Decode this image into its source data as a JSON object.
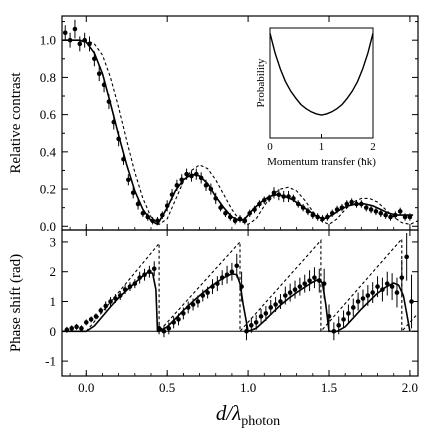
{
  "chart_data": [
    {
      "type": "line",
      "panel": "top",
      "ylabel": "Relative contrast",
      "xlim": [
        -0.15,
        2.05
      ],
      "ylim": [
        -0.02,
        1.13
      ],
      "yticks": [
        "0.0",
        "0.2",
        "0.4",
        "0.6",
        "0.8",
        "1.0"
      ],
      "xticks": [],
      "series": [
        {
          "kind": "fit-solid",
          "x": [
            -0.15,
            -0.1,
            -0.05,
            0.0,
            0.05,
            0.1,
            0.15,
            0.2,
            0.25,
            0.3,
            0.35,
            0.4,
            0.44,
            0.5,
            0.55,
            0.6,
            0.65,
            0.7,
            0.75,
            0.8,
            0.85,
            0.9,
            0.95,
            0.98,
            1.03,
            1.08,
            1.13,
            1.18,
            1.23,
            1.28,
            1.33,
            1.38,
            1.43,
            1.47,
            1.52,
            1.57,
            1.62,
            1.67,
            1.72,
            1.77,
            1.82,
            1.87,
            1.92,
            1.97,
            2.02
          ],
          "y": [
            1.0,
            1.0,
            1.0,
            0.99,
            0.93,
            0.82,
            0.66,
            0.49,
            0.33,
            0.19,
            0.09,
            0.03,
            0.01,
            0.1,
            0.19,
            0.25,
            0.28,
            0.27,
            0.23,
            0.16,
            0.1,
            0.05,
            0.03,
            0.04,
            0.09,
            0.13,
            0.16,
            0.17,
            0.16,
            0.14,
            0.11,
            0.08,
            0.05,
            0.04,
            0.06,
            0.09,
            0.11,
            0.12,
            0.12,
            0.11,
            0.09,
            0.07,
            0.06,
            0.06,
            0.06
          ]
        },
        {
          "kind": "theory-dashed",
          "x": [
            -0.15,
            -0.1,
            -0.05,
            0.0,
            0.05,
            0.1,
            0.15,
            0.2,
            0.25,
            0.3,
            0.35,
            0.4,
            0.45,
            0.5,
            0.55,
            0.6,
            0.65,
            0.7,
            0.75,
            0.8,
            0.85,
            0.9,
            0.95,
            1.0,
            1.05,
            1.1,
            1.15,
            1.2,
            1.25,
            1.3,
            1.35,
            1.4,
            1.45,
            1.5,
            1.55,
            1.6,
            1.65,
            1.7,
            1.75,
            1.8,
            1.85,
            1.9,
            1.95,
            2.0,
            2.05
          ],
          "y": [
            1.0,
            1.0,
            1.0,
            1.0,
            0.98,
            0.92,
            0.8,
            0.64,
            0.46,
            0.29,
            0.15,
            0.05,
            0.01,
            0.04,
            0.14,
            0.24,
            0.3,
            0.33,
            0.31,
            0.25,
            0.17,
            0.09,
            0.03,
            0.01,
            0.04,
            0.11,
            0.17,
            0.2,
            0.21,
            0.19,
            0.14,
            0.08,
            0.03,
            0.01,
            0.04,
            0.09,
            0.13,
            0.15,
            0.15,
            0.13,
            0.09,
            0.05,
            0.02,
            0.01,
            0.03
          ]
        },
        {
          "kind": "data-points",
          "x": [
            -0.13,
            -0.1,
            -0.07,
            -0.04,
            -0.01,
            0.02,
            0.05,
            0.08,
            0.11,
            0.14,
            0.17,
            0.2,
            0.23,
            0.26,
            0.29,
            0.32,
            0.35,
            0.38,
            0.41,
            0.44,
            0.47,
            0.5,
            0.53,
            0.56,
            0.59,
            0.62,
            0.65,
            0.68,
            0.71,
            0.74,
            0.77,
            0.8,
            0.83,
            0.86,
            0.89,
            0.92,
            0.95,
            0.98,
            1.01,
            1.04,
            1.07,
            1.1,
            1.13,
            1.16,
            1.19,
            1.22,
            1.25,
            1.28,
            1.31,
            1.34,
            1.37,
            1.4,
            1.43,
            1.46,
            1.49,
            1.52,
            1.55,
            1.58,
            1.61,
            1.64,
            1.67,
            1.7,
            1.73,
            1.76,
            1.79,
            1.82,
            1.85,
            1.88,
            1.91,
            1.94,
            1.97,
            2.0
          ],
          "y": [
            1.04,
            1.0,
            1.06,
            0.98,
            1.0,
            0.98,
            0.9,
            0.82,
            0.76,
            0.67,
            0.56,
            0.47,
            0.36,
            0.25,
            0.18,
            0.12,
            0.07,
            0.05,
            0.03,
            0.03,
            0.06,
            0.11,
            0.17,
            0.22,
            0.25,
            0.28,
            0.27,
            0.28,
            0.26,
            0.22,
            0.2,
            0.15,
            0.1,
            0.07,
            0.05,
            0.03,
            0.04,
            0.03,
            0.07,
            0.09,
            0.12,
            0.14,
            0.15,
            0.18,
            0.17,
            0.16,
            0.16,
            0.15,
            0.12,
            0.1,
            0.08,
            0.06,
            0.05,
            0.04,
            0.05,
            0.07,
            0.09,
            0.1,
            0.12,
            0.13,
            0.12,
            0.12,
            0.1,
            0.09,
            0.08,
            0.07,
            0.06,
            0.05,
            0.06,
            0.08,
            0.05,
            0.05
          ],
          "err": [
            0.04,
            0.04,
            0.05,
            0.04,
            0.04,
            0.04,
            0.04,
            0.04,
            0.04,
            0.04,
            0.04,
            0.04,
            0.03,
            0.03,
            0.03,
            0.03,
            0.02,
            0.02,
            0.02,
            0.02,
            0.02,
            0.03,
            0.03,
            0.03,
            0.03,
            0.03,
            0.03,
            0.03,
            0.03,
            0.03,
            0.03,
            0.03,
            0.02,
            0.02,
            0.02,
            0.02,
            0.02,
            0.02,
            0.02,
            0.02,
            0.02,
            0.02,
            0.02,
            0.03,
            0.03,
            0.03,
            0.03,
            0.02,
            0.02,
            0.02,
            0.02,
            0.02,
            0.02,
            0.02,
            0.02,
            0.02,
            0.02,
            0.02,
            0.02,
            0.02,
            0.02,
            0.02,
            0.02,
            0.02,
            0.02,
            0.02,
            0.02,
            0.02,
            0.02,
            0.02,
            0.02,
            0.02
          ]
        }
      ]
    },
    {
      "type": "line",
      "panel": "bottom",
      "ylabel": "Phase shift (rad)",
      "xlabel_main": "d/λ",
      "xlabel_sub": "photon",
      "xlim": [
        -0.15,
        2.05
      ],
      "ylim": [
        -1.5,
        3.4
      ],
      "yticks": [
        "-1",
        "0",
        "1",
        "2",
        "3"
      ],
      "xticks": [
        "0.0",
        "0.5",
        "1.0",
        "1.5",
        "2.0"
      ],
      "series": [
        {
          "kind": "fit-solid",
          "x": [
            -0.15,
            0.0,
            0.05,
            0.1,
            0.15,
            0.2,
            0.25,
            0.3,
            0.35,
            0.38,
            0.41,
            0.43,
            0.44,
            0.45,
            0.5,
            0.55,
            0.6,
            0.65,
            0.7,
            0.75,
            0.8,
            0.85,
            0.9,
            0.93,
            0.95,
            0.97,
            1.0,
            1.05,
            1.1,
            1.15,
            1.2,
            1.25,
            1.3,
            1.35,
            1.4,
            1.44,
            1.46,
            1.48,
            1.5,
            1.55,
            1.6,
            1.65,
            1.7,
            1.75,
            1.8,
            1.85,
            1.9,
            1.93,
            1.96,
            1.98,
            2.0
          ],
          "y": [
            0.0,
            0.0,
            0.18,
            0.5,
            0.82,
            1.12,
            1.38,
            1.62,
            1.86,
            1.98,
            1.95,
            1.4,
            0.0,
            0.0,
            0.15,
            0.42,
            0.7,
            0.96,
            1.2,
            1.42,
            1.62,
            1.8,
            1.93,
            1.9,
            1.6,
            0.9,
            0.0,
            0.1,
            0.35,
            0.62,
            0.88,
            1.1,
            1.3,
            1.48,
            1.65,
            1.76,
            1.6,
            0.9,
            0.0,
            0.0,
            0.15,
            0.45,
            0.75,
            1.02,
            1.28,
            1.48,
            1.62,
            1.55,
            1.2,
            0.6,
            0.0
          ]
        },
        {
          "kind": "theory-dashed",
          "x": [
            0.0,
            0.45,
            0.45,
            0.95,
            0.95,
            1.45,
            1.45,
            1.95,
            1.95,
            2.05
          ],
          "y": [
            0.0,
            2.95,
            0.0,
            3.0,
            0.0,
            3.05,
            0.0,
            3.1,
            0.0,
            0.6
          ]
        },
        {
          "kind": "data-points",
          "x": [
            -0.12,
            -0.09,
            -0.06,
            -0.03,
            0.0,
            0.03,
            0.06,
            0.09,
            0.12,
            0.15,
            0.18,
            0.21,
            0.24,
            0.27,
            0.3,
            0.33,
            0.36,
            0.39,
            0.42,
            0.45,
            0.48,
            0.51,
            0.54,
            0.57,
            0.6,
            0.63,
            0.66,
            0.69,
            0.72,
            0.75,
            0.78,
            0.81,
            0.84,
            0.87,
            0.9,
            0.93,
            0.96,
            0.99,
            1.02,
            1.05,
            1.08,
            1.11,
            1.14,
            1.17,
            1.2,
            1.23,
            1.26,
            1.29,
            1.32,
            1.35,
            1.38,
            1.41,
            1.44,
            1.47,
            1.5,
            1.53,
            1.56,
            1.59,
            1.62,
            1.65,
            1.68,
            1.71,
            1.74,
            1.77,
            1.8,
            1.83,
            1.86,
            1.89,
            1.92,
            1.95,
            1.98,
            2.01
          ],
          "y": [
            0.05,
            0.1,
            0.15,
            0.1,
            0.3,
            0.4,
            0.5,
            0.7,
            0.85,
            1.0,
            1.1,
            1.2,
            1.4,
            1.5,
            1.6,
            1.8,
            1.9,
            2.0,
            2.1,
            0.1,
            0.0,
            0.1,
            0.3,
            0.4,
            0.6,
            0.8,
            0.9,
            1.0,
            1.2,
            1.3,
            1.5,
            1.6,
            1.8,
            1.9,
            2.0,
            2.2,
            1.5,
            0.0,
            0.2,
            0.3,
            0.5,
            0.6,
            0.8,
            0.9,
            1.0,
            1.2,
            1.3,
            1.4,
            1.5,
            1.6,
            1.7,
            1.8,
            1.7,
            1.6,
            0.5,
            0.0,
            0.2,
            0.4,
            0.6,
            0.8,
            1.0,
            1.1,
            1.2,
            1.3,
            1.5,
            1.4,
            1.6,
            1.5,
            1.3,
            1.8,
            2.5,
            1.0
          ],
          "err": [
            0.1,
            0.1,
            0.1,
            0.1,
            0.1,
            0.1,
            0.1,
            0.1,
            0.15,
            0.15,
            0.15,
            0.15,
            0.15,
            0.15,
            0.15,
            0.2,
            0.2,
            0.2,
            0.25,
            0.2,
            0.2,
            0.2,
            0.2,
            0.2,
            0.2,
            0.2,
            0.2,
            0.2,
            0.2,
            0.2,
            0.25,
            0.25,
            0.25,
            0.3,
            0.3,
            0.4,
            0.5,
            0.3,
            0.25,
            0.25,
            0.25,
            0.25,
            0.25,
            0.25,
            0.25,
            0.3,
            0.3,
            0.3,
            0.3,
            0.3,
            0.35,
            0.35,
            0.4,
            0.5,
            0.4,
            0.3,
            0.3,
            0.3,
            0.3,
            0.3,
            0.3,
            0.3,
            0.35,
            0.35,
            0.35,
            0.4,
            0.4,
            0.45,
            0.5,
            0.6,
            0.8,
            0.9
          ]
        }
      ]
    }
  ],
  "inset": {
    "ylabel": "Probability",
    "xlabel": "Momentum transfer (ħk)",
    "xticks": [
      "0",
      "1",
      "2"
    ],
    "curve": {
      "x": [
        0.0,
        0.1,
        0.2,
        0.3,
        0.4,
        0.5,
        0.6,
        0.7,
        0.8,
        0.9,
        1.0,
        1.1,
        1.2,
        1.3,
        1.4,
        1.5,
        1.6,
        1.7,
        1.8,
        1.9,
        2.0
      ],
      "y": [
        1.0,
        0.81,
        0.66,
        0.54,
        0.45,
        0.38,
        0.32,
        0.28,
        0.25,
        0.23,
        0.22,
        0.23,
        0.25,
        0.28,
        0.32,
        0.38,
        0.45,
        0.54,
        0.66,
        0.81,
        1.0
      ]
    },
    "xlim": [
      0,
      2
    ],
    "ylim": [
      0,
      1.05
    ]
  }
}
